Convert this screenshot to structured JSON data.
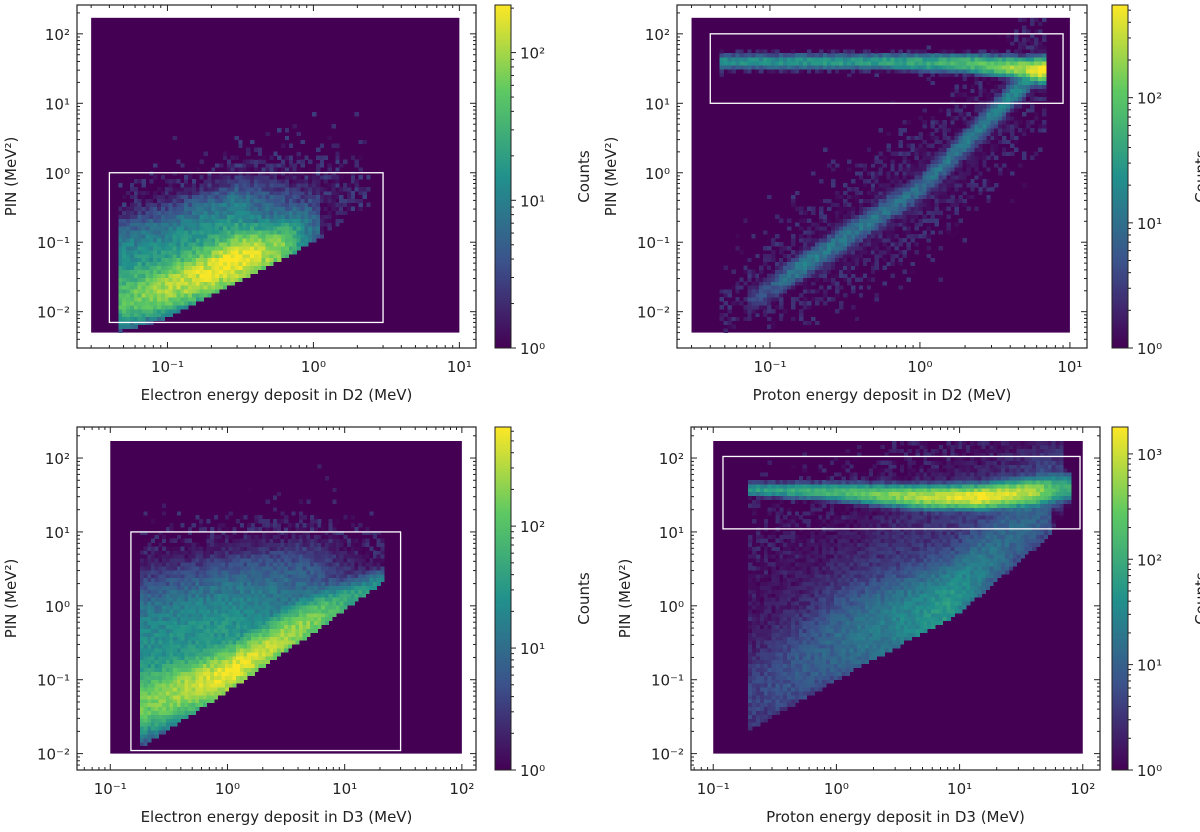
{
  "figure": {
    "colormap": "viridis",
    "empty_color": "#440154",
    "box_color": "#ffffff"
  },
  "chart_data": [
    {
      "type": "heatmap",
      "xlabel": "Electron energy deposit in D2 (MeV)",
      "ylabel": "PIN (MeV²)",
      "xscale": "log",
      "yscale": "log",
      "xlim": [
        0.024,
        13
      ],
      "ylim": [
        0.003,
        260
      ],
      "x_ticks": [
        0.1,
        1,
        10
      ],
      "y_ticks": [
        0.01,
        0.1,
        1,
        10,
        100
      ],
      "hist_extent": {
        "x": [
          0.03,
          10
        ],
        "y": [
          0.005,
          170
        ]
      },
      "selection_box": {
        "x": [
          0.04,
          3
        ],
        "y": [
          0.007,
          1
        ]
      },
      "colorbar": {
        "label": "Counts",
        "scale": "log",
        "range": [
          1,
          210
        ],
        "ticks": [
          1,
          10,
          100
        ]
      },
      "x_cut": [
        0.045,
        2.5
      ],
      "lower_edge": [
        [
          0.045,
          0.005
        ],
        [
          0.1,
          0.008
        ],
        [
          1,
          0.1
        ],
        [
          2.5,
          0.35
        ]
      ],
      "ridges": [
        [
          [
            0.05,
            0.015,
            40,
            0.2
          ],
          [
            0.1,
            0.022,
            100,
            0.18
          ],
          [
            0.3,
            0.055,
            210,
            0.18
          ],
          [
            0.6,
            0.08,
            80,
            0.18
          ],
          [
            1,
            0.15,
            5,
            0.25
          ]
        ],
        [
          [
            0.05,
            0.04,
            15,
            0.4
          ],
          [
            0.3,
            0.1,
            20,
            0.45
          ],
          [
            1,
            0.3,
            2,
            0.4
          ],
          [
            2.5,
            0.5,
            0.4,
            0.4
          ]
        ]
      ]
    },
    {
      "type": "heatmap",
      "xlabel": "Proton energy deposit in D2 (MeV)",
      "ylabel": "PIN (MeV²)",
      "xscale": "log",
      "yscale": "log",
      "xlim": [
        0.024,
        13
      ],
      "ylim": [
        0.003,
        260
      ],
      "x_ticks": [
        0.1,
        1,
        10
      ],
      "y_ticks": [
        0.01,
        0.1,
        1,
        10,
        100
      ],
      "hist_extent": {
        "x": [
          0.03,
          10
        ],
        "y": [
          0.005,
          170
        ]
      },
      "selection_box": {
        "x": [
          0.04,
          9
        ],
        "y": [
          10,
          100
        ]
      },
      "colorbar": {
        "label": "Counts",
        "scale": "log",
        "range": [
          1,
          550
        ],
        "ticks": [
          1,
          10,
          100
        ]
      },
      "x_cut": [
        0.045,
        7
      ],
      "lower_edge": [],
      "ridges": [
        [
          [
            0.05,
            40,
            25,
            0.05
          ],
          [
            0.5,
            40,
            35,
            0.05
          ],
          [
            2,
            38,
            70,
            0.06
          ],
          [
            5,
            32,
            300,
            0.06
          ],
          [
            6.5,
            30,
            550,
            0.07
          ]
        ],
        [
          [
            0.08,
            0.015,
            3,
            0.12
          ],
          [
            0.15,
            0.04,
            14,
            0.1
          ],
          [
            1,
            0.6,
            9,
            0.1
          ],
          [
            6,
            30,
            20,
            0.1
          ]
        ],
        [
          [
            0.05,
            0.01,
            0.5,
            0.4
          ],
          [
            0.3,
            0.1,
            1.4,
            0.5
          ],
          [
            2,
            2,
            1.4,
            0.5
          ],
          [
            6,
            30,
            1,
            0.5
          ]
        ]
      ]
    },
    {
      "type": "heatmap",
      "xlabel": "Electron energy deposit in D3 (MeV)",
      "ylabel": "PIN (MeV²)",
      "xscale": "log",
      "yscale": "log",
      "xlim": [
        0.052,
        132
      ],
      "ylim": [
        0.006,
        263
      ],
      "x_ticks": [
        0.1,
        1,
        10,
        100
      ],
      "y_ticks": [
        0.01,
        0.1,
        1,
        10,
        100
      ],
      "hist_extent": {
        "x": [
          0.1,
          100
        ],
        "y": [
          0.01,
          170
        ]
      },
      "selection_box": {
        "x": [
          0.15,
          30
        ],
        "y": [
          0.011,
          10
        ]
      },
      "colorbar": {
        "label": "Counts",
        "scale": "log",
        "range": [
          1,
          650
        ],
        "ticks": [
          1,
          10,
          100
        ]
      },
      "x_cut": [
        0.18,
        25
      ],
      "lower_edge": [
        [
          0.18,
          0.012
        ],
        [
          1,
          0.07
        ],
        [
          5,
          0.4
        ],
        [
          25,
          2.5
        ]
      ],
      "ridges": [
        [
          [
            0.2,
            0.05,
            150,
            0.2
          ],
          [
            1,
            0.12,
            600,
            0.15
          ],
          [
            5,
            0.6,
            200,
            0.15
          ],
          [
            20,
            2,
            20,
            0.1
          ]
        ],
        [
          [
            0.2,
            0.2,
            25,
            0.55
          ],
          [
            1,
            0.4,
            30,
            0.5
          ],
          [
            5,
            1.5,
            8,
            0.45
          ],
          [
            20,
            3,
            1,
            0.3
          ]
        ]
      ]
    },
    {
      "type": "heatmap",
      "xlabel": "Proton energy deposit in D3 (MeV)",
      "ylabel": "PIN (MeV²)",
      "xscale": "log",
      "yscale": "log",
      "xlim": [
        0.066,
        138
      ],
      "ylim": [
        0.006,
        263
      ],
      "x_ticks": [
        0.1,
        1,
        10,
        100
      ],
      "y_ticks": [
        0.01,
        0.1,
        1,
        10,
        100
      ],
      "hist_extent": {
        "x": [
          0.1,
          100
        ],
        "y": [
          0.01,
          170
        ]
      },
      "selection_box": {
        "x": [
          0.12,
          95
        ],
        "y": [
          11,
          105
        ]
      },
      "colorbar": {
        "label": "Counts",
        "scale": "log",
        "range": [
          1,
          1800
        ],
        "ticks": [
          1,
          10,
          100,
          1000
        ]
      },
      "x_cut": [
        0.19,
        80
      ],
      "lower_edge": [
        [
          0.19,
          0.02
        ],
        [
          1,
          0.1
        ],
        [
          10,
          0.8
        ],
        [
          50,
          8
        ],
        [
          100,
          40
        ]
      ],
      "ridges": [
        [
          [
            0.2,
            38,
            60,
            0.04
          ],
          [
            1,
            35,
            150,
            0.05
          ],
          [
            5,
            30,
            800,
            0.06
          ],
          [
            15,
            30,
            1800,
            0.06
          ],
          [
            40,
            35,
            800,
            0.07
          ],
          [
            70,
            40,
            100,
            0.08
          ]
        ],
        [
          [
            0.2,
            0.05,
            4,
            0.4
          ],
          [
            1,
            0.3,
            12,
            0.4
          ],
          [
            8,
            1,
            60,
            0.3
          ],
          [
            20,
            5,
            15,
            0.3
          ],
          [
            50,
            20,
            8,
            0.3
          ]
        ],
        [
          [
            0.2,
            0.5,
            1.5,
            0.8
          ],
          [
            5,
            10,
            3,
            0.6
          ],
          [
            60,
            60,
            4,
            0.4
          ]
        ]
      ]
    }
  ]
}
